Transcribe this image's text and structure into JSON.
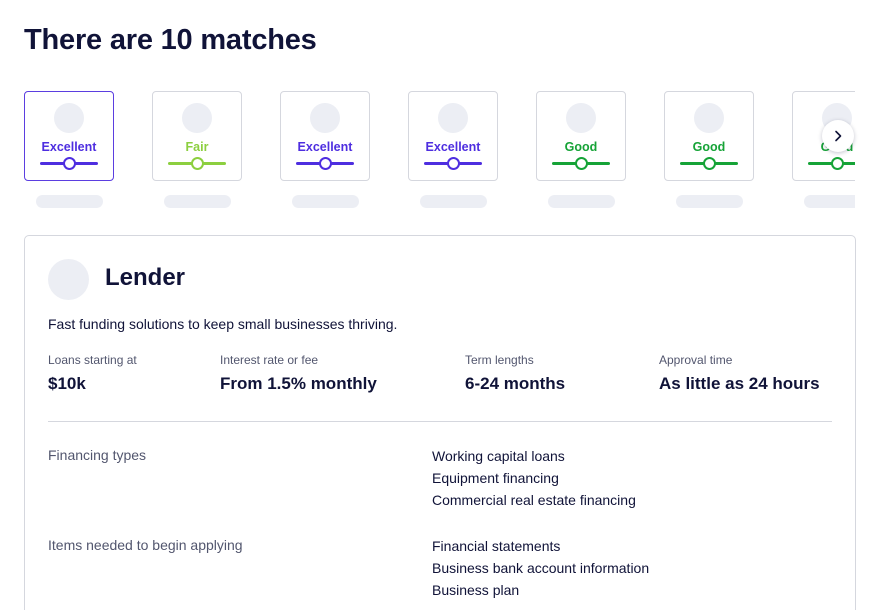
{
  "heading": "There are 10 matches",
  "carousel": {
    "cards": [
      {
        "rating": "Excellent",
        "color": "#4e2ee0",
        "selected": true
      },
      {
        "rating": "Fair",
        "color": "#8ccf3f",
        "selected": false
      },
      {
        "rating": "Excellent",
        "color": "#4e2ee0",
        "selected": false
      },
      {
        "rating": "Excellent",
        "color": "#4e2ee0",
        "selected": false
      },
      {
        "rating": "Good",
        "color": "#16a337",
        "selected": false
      },
      {
        "rating": "Good",
        "color": "#16a337",
        "selected": false
      },
      {
        "rating": "Good",
        "color": "#16a337",
        "selected": false
      }
    ],
    "next_icon": "chevron-right-icon"
  },
  "lender": {
    "name": "Lender",
    "tagline": "Fast funding solutions to keep small businesses thriving.",
    "stats": [
      {
        "label": "Loans starting at",
        "value": "$10k"
      },
      {
        "label": "Interest rate or fee",
        "value": "From 1.5% monthly"
      },
      {
        "label": "Term lengths",
        "value": "6-24 months"
      },
      {
        "label": "Approval time",
        "value": "As little as 24 hours"
      }
    ],
    "financing_types": {
      "label": "Financing types",
      "items": [
        "Working capital loans",
        "Equipment financing",
        "Commercial real estate financing"
      ]
    },
    "items_needed": {
      "label": "Items needed to begin applying",
      "items": [
        "Financial statements",
        "Business bank account information",
        "Business plan"
      ]
    }
  }
}
